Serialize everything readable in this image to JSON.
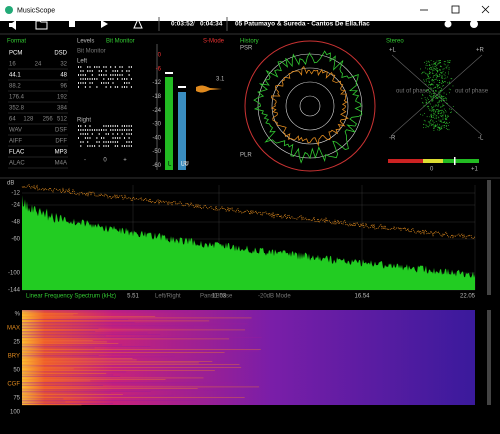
{
  "window": {
    "title": "MusicScope"
  },
  "toolbar": {
    "elapsed": "0:03:52",
    "separator": "/",
    "total": "0:04:34",
    "track": "05 Patumayo & Sureda - Cantos De Ella.flac"
  },
  "format": {
    "title": "Format",
    "rows": [
      [
        "PCM",
        "DSD"
      ],
      [
        "16",
        "24",
        "32"
      ],
      [
        "44.1",
        "48"
      ],
      [
        "88.2",
        "96"
      ],
      [
        "176.4",
        "192"
      ],
      [
        "352.8",
        "384"
      ],
      [
        "64",
        "128",
        "256",
        "512"
      ],
      [
        "WAV",
        "DSF"
      ],
      [
        "AIFF",
        "DFF"
      ],
      [
        "FLAC",
        "MP3"
      ],
      [
        "ALAC",
        "M4A"
      ]
    ]
  },
  "levels": {
    "title": "Levels",
    "mode": "Bit Monitor",
    "subtitle": "Bit Monitor",
    "left": "Left",
    "right": "Right",
    "scale": [
      "-",
      "0",
      "+"
    ]
  },
  "meter": {
    "mode": "S-Mode",
    "ticks": [
      "0",
      "-6",
      "-12",
      "-18",
      "-24",
      "-30",
      "-40",
      "-50",
      "-60"
    ],
    "peak": "3.1",
    "left": "L",
    "right": "R",
    "loudness": "LU"
  },
  "history": {
    "title": "History",
    "top": "PSR",
    "bottom": "PLR"
  },
  "stereo": {
    "title": "Stereo",
    "plus_left": "+L",
    "plus_right": "+R",
    "minus_right": "-R",
    "minus_left": "-L",
    "phase_left": "out of phase",
    "phase_right": "out of phase",
    "zero": "0",
    "plus_one": "+1"
  },
  "spectrum": {
    "unit": "dB",
    "ticks": [
      "-12",
      "-24",
      "-48",
      "-60",
      "-100",
      "-144"
    ],
    "freqs": [
      "5.51",
      "11.03",
      "16.54",
      "22.05"
    ],
    "caption": "Linear Frequency Spectrum (kHz)",
    "modes": [
      "Left/Right",
      "Pans/Phase",
      "-20dB Mode"
    ]
  },
  "spectrogram": {
    "ticks": [
      "%",
      "MAX",
      "25",
      "BRY",
      "50",
      "CGF",
      "75",
      "100"
    ]
  }
}
